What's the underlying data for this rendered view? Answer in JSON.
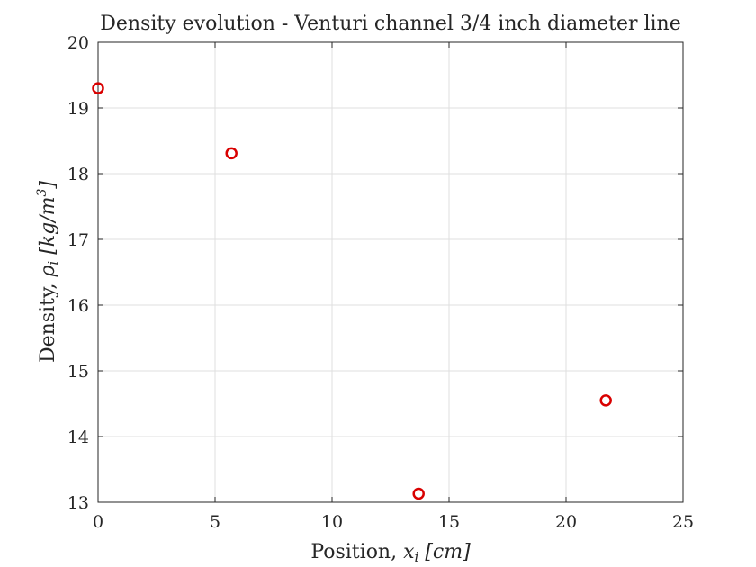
{
  "chart_data": {
    "type": "scatter",
    "title": "Density evolution - Venturi channel 3/4 inch diameter line",
    "xlabel": {
      "prefix": "Position, ",
      "symbol": "x",
      "subscript": "i",
      "unit": " [cm]"
    },
    "ylabel": {
      "prefix": "Density, ",
      "symbol": "ρ",
      "subscript": "i",
      "unit": " [kg/m",
      "unit_power": "3",
      "unit_close": "]"
    },
    "xlim": [
      0,
      25
    ],
    "ylim": [
      13,
      20
    ],
    "xticks": [
      "0",
      "5",
      "10",
      "15",
      "20",
      "25"
    ],
    "yticks": [
      "13",
      "14",
      "15",
      "16",
      "17",
      "18",
      "19",
      "20"
    ],
    "grid": true,
    "marker": "circle-open",
    "color": "#d90000",
    "series": [
      {
        "x": [
          0,
          5.7,
          13.7,
          21.7
        ],
        "y": [
          19.3,
          18.31,
          13.13,
          14.55
        ]
      }
    ]
  }
}
